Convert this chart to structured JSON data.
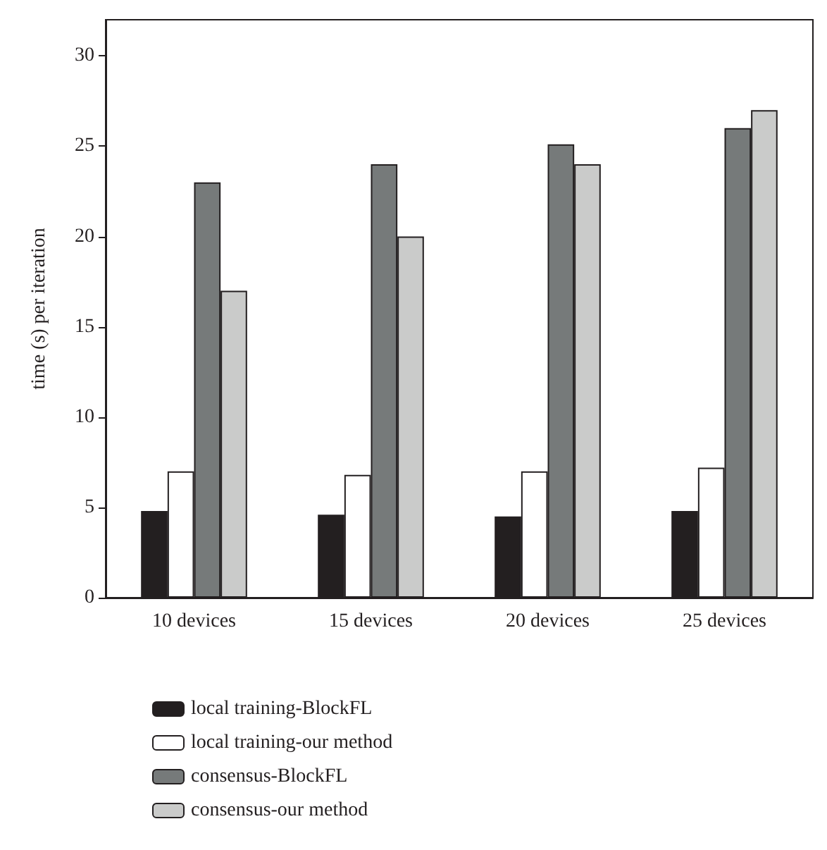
{
  "chart_data": {
    "type": "bar",
    "ylabel": "time (s) per iteration",
    "categories": [
      "10 devices",
      "15 devices",
      "20 devices",
      "25 devices"
    ],
    "series": [
      {
        "name": "local training-BlockFL",
        "color": "#231f20",
        "values": [
          4.8,
          4.6,
          4.5,
          4.8
        ]
      },
      {
        "name": "local training-our method",
        "color": "#ffffff",
        "values": [
          7.0,
          6.8,
          7.0,
          7.2
        ]
      },
      {
        "name": "consensus-BlockFL",
        "color": "#767a7a",
        "values": [
          23,
          24,
          25.1,
          26
        ]
      },
      {
        "name": "consensus-our method",
        "color": "#cacbca",
        "values": [
          17,
          20,
          24,
          27
        ]
      }
    ],
    "ylim": [
      0,
      32
    ],
    "yticks": [
      0,
      5,
      10,
      15,
      20,
      25,
      30
    ],
    "grid": false,
    "legend": "bottom left"
  }
}
